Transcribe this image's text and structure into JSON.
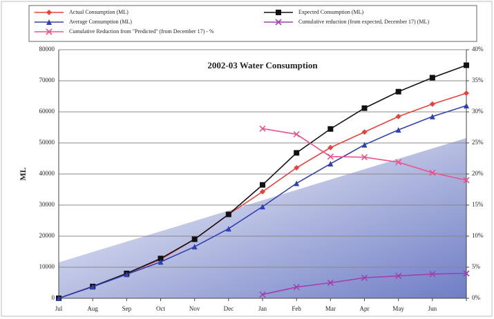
{
  "chart_data": {
    "type": "line",
    "title": "2002-03 Water Consumption",
    "y_label": "ML",
    "categories": [
      "Jul",
      "Aug",
      "Sep",
      "Oct",
      "Nov",
      "Dec",
      "Jan",
      "Feb",
      "Mar",
      "Apr",
      "May",
      "Jun",
      null
    ],
    "ylim": [
      0,
      80000
    ],
    "yticks": [
      0,
      10000,
      20000,
      30000,
      40000,
      50000,
      60000,
      70000,
      80000
    ],
    "y2lim": [
      0,
      40
    ],
    "y2ticks": [
      {
        "value": 0,
        "label": "0%"
      },
      {
        "value": 5,
        "label": "5%"
      },
      {
        "value": 10,
        "label": "10%"
      },
      {
        "value": 15,
        "label": "15%"
      },
      {
        "value": 20,
        "label": "20%"
      },
      {
        "value": 25,
        "label": "25%"
      },
      {
        "value": 30,
        "label": "30%"
      },
      {
        "value": 35,
        "label": "35%"
      },
      {
        "value": 40,
        "label": "40%"
      }
    ],
    "grid": true,
    "legend": "top",
    "series": [
      {
        "name": "Actual Consumption (ML)",
        "color": "#e8403a",
        "marker": "diamond",
        "values": [
          0,
          3800,
          8000,
          12500,
          19000,
          27000,
          34300,
          42000,
          48500,
          53500,
          58500,
          62500,
          66000
        ]
      },
      {
        "name": "Expected Consumption (ML)",
        "color": "#111111",
        "marker": "square",
        "values": [
          0,
          3800,
          8000,
          12800,
          19000,
          27000,
          36500,
          46800,
          54500,
          61200,
          66500,
          71000,
          75000
        ]
      },
      {
        "name": "Average Consumption (ML)",
        "color": "#3040b0",
        "marker": "triangle",
        "values": [
          0,
          3700,
          7700,
          11700,
          16600,
          22400,
          29500,
          37000,
          43300,
          49400,
          54200,
          58500,
          62000
        ]
      },
      {
        "name": "Cumulative reduction (from expected, December 17) (ML)",
        "color": "#a040b0",
        "marker": "x",
        "axis": "y2",
        "values": [
          null,
          null,
          null,
          null,
          null,
          null,
          0.6,
          1.8,
          2.5,
          3.3,
          3.6,
          3.9,
          4.0
        ]
      },
      {
        "name": "Cumulative Reduction from \"Predicted\" (from December 17) - %",
        "color": "#f0508a",
        "marker": "x",
        "axis": "y2",
        "values": [
          null,
          null,
          null,
          null,
          null,
          null,
          27.3,
          26.4,
          22.8,
          22.7,
          21.9,
          20.2,
          19.0
        ]
      }
    ]
  }
}
